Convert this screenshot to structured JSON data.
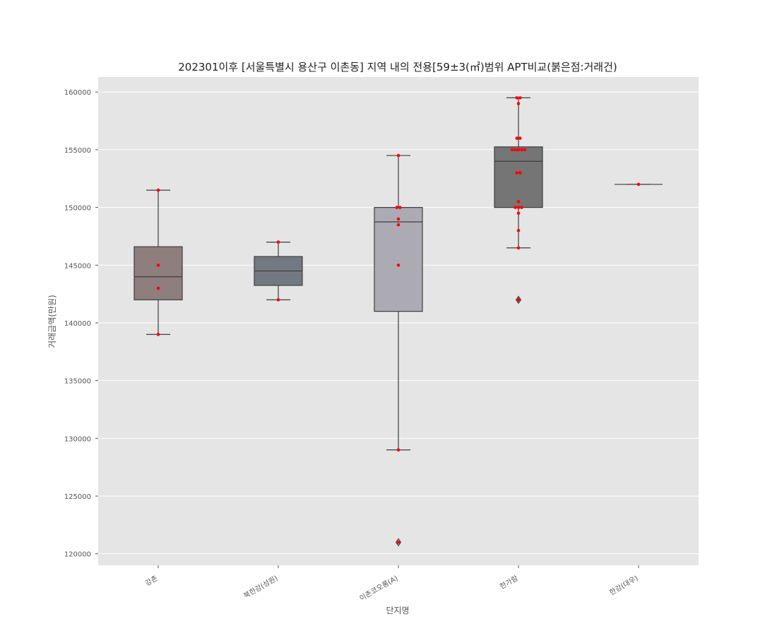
{
  "chart_data": {
    "type": "box",
    "title": "202301이후 [서울특별시 용산구 이촌동] 지역 내의 전용[59±3(㎡)범위 APT비교(붉은점:거래건)",
    "xlabel": "단지명",
    "ylabel": "거래금액(만원)",
    "ylim": [
      119000,
      161300
    ],
    "yticks": [
      120000,
      125000,
      130000,
      135000,
      140000,
      145000,
      150000,
      155000,
      160000
    ],
    "grid": true,
    "categories": [
      "강촌",
      "북한강(성원)",
      "이촌코오롱(A)",
      "한가람",
      "한강(대우)"
    ],
    "box_colors": [
      "#8f7e7e",
      "#737980",
      "#acabb3",
      "#757575",
      "#6e6e6e"
    ],
    "point_color": "#ff0000",
    "boxes": [
      {
        "name": "강촌",
        "whisker_low": 139000,
        "q1": 142000,
        "median": 144000,
        "q3": 146600,
        "whisker_high": 151500,
        "outliers": [],
        "points": [
          151500,
          145000,
          143000,
          139000
        ]
      },
      {
        "name": "북한강(성원)",
        "whisker_low": 142000,
        "q1": 143250,
        "median": 144500,
        "q3": 145750,
        "whisker_high": 147000,
        "outliers": [],
        "points": [
          147000,
          142000
        ]
      },
      {
        "name": "이촌코오롱(A)",
        "whisker_low": 129000,
        "q1": 141000,
        "median": 148750,
        "q3": 150000,
        "whisker_high": 154500,
        "outliers": [
          121000
        ],
        "points": [
          154500,
          150000,
          150000,
          149000,
          148500,
          145000,
          129000,
          121000
        ]
      },
      {
        "name": "한가람",
        "whisker_low": 146500,
        "q1": 150000,
        "median": 154000,
        "q3": 155250,
        "whisker_high": 159500,
        "outliers": [
          142000
        ],
        "points": [
          159500,
          159500,
          159000,
          156000,
          156000,
          155000,
          155000,
          155000,
          155000,
          155000,
          153000,
          153000,
          150500,
          150000,
          150000,
          150000,
          149500,
          148000,
          146500,
          142000
        ]
      },
      {
        "name": "한강(대우)",
        "whisker_low": 152000,
        "q1": 152000,
        "median": 152000,
        "q3": 152000,
        "whisker_high": 152000,
        "outliers": [],
        "points": [
          152000
        ]
      }
    ]
  }
}
